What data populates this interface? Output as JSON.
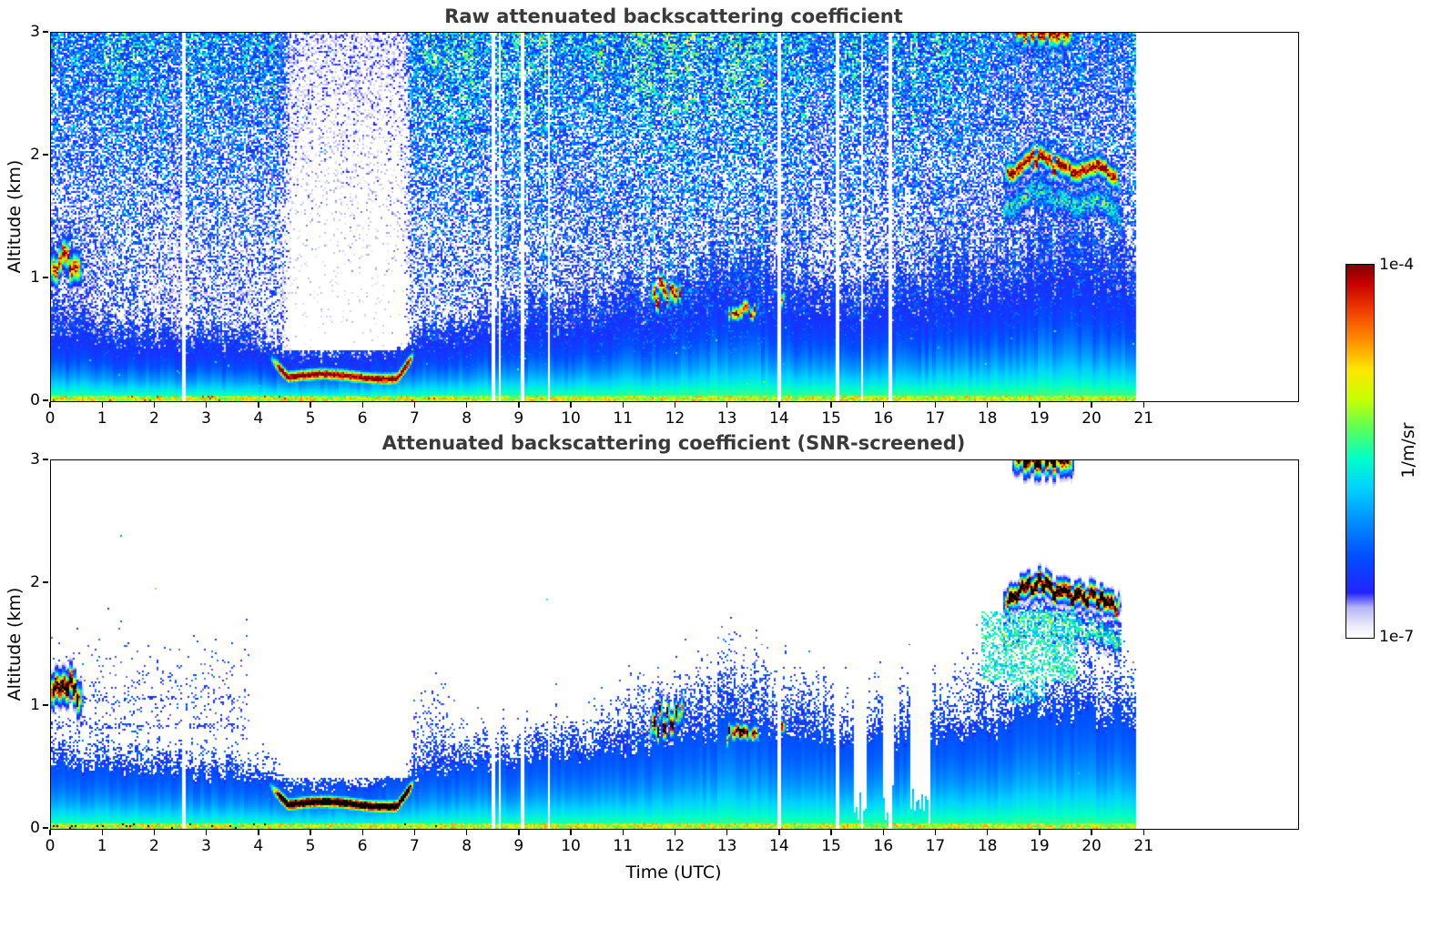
{
  "figure": {
    "xlabel": "Time (UTC)",
    "ylabel": "Altitude (km)",
    "colorbar": {
      "label_top": "1e-4",
      "label_bottom": "1e-7",
      "unit": "1/m/sr"
    }
  },
  "chart_data": [
    {
      "type": "heatmap",
      "title": "Raw attenuated backscattering coefficient",
      "xlabel": "Time (UTC)",
      "ylabel": "Altitude (km)",
      "x_range": [
        0,
        23.95
      ],
      "x_ticks": [
        0,
        1,
        2,
        3,
        4,
        5,
        6,
        7,
        8,
        9,
        10,
        11,
        12,
        13,
        14,
        15,
        16,
        17,
        18,
        19,
        20,
        21
      ],
      "y_range": [
        0,
        3
      ],
      "y_ticks": [
        0,
        1,
        2,
        3
      ],
      "value_unit": "1/m/sr",
      "value_scale": "log10",
      "vmin": 1e-07,
      "vmax": 0.0001,
      "grid": false,
      "screened": false,
      "data_time_range": [
        0,
        20.83
      ],
      "colormap_stops": [
        [
          0.0,
          "#ffffff"
        ],
        [
          0.03,
          "#ececfb"
        ],
        [
          0.08,
          "#b4b4f5"
        ],
        [
          0.12,
          "#2323ff"
        ],
        [
          0.22,
          "#0050ff"
        ],
        [
          0.32,
          "#0096ff"
        ],
        [
          0.4,
          "#00d2ff"
        ],
        [
          0.48,
          "#00ffc8"
        ],
        [
          0.56,
          "#5aff5a"
        ],
        [
          0.64,
          "#c8ff00"
        ],
        [
          0.72,
          "#ffe600"
        ],
        [
          0.8,
          "#ff8c00"
        ],
        [
          0.88,
          "#f03c00"
        ],
        [
          0.95,
          "#c80000"
        ],
        [
          1.0,
          "#820000"
        ]
      ],
      "boundary_layer_top_km": [
        [
          0,
          0.5
        ],
        [
          1,
          0.46
        ],
        [
          2,
          0.44
        ],
        [
          3,
          0.42
        ],
        [
          4,
          0.38
        ],
        [
          4.6,
          0.32
        ],
        [
          6,
          0.33
        ],
        [
          7,
          0.42
        ],
        [
          8,
          0.5
        ],
        [
          9,
          0.52
        ],
        [
          10,
          0.56
        ],
        [
          11,
          0.62
        ],
        [
          12,
          0.68
        ],
        [
          13,
          0.82
        ],
        [
          13.6,
          0.78
        ],
        [
          14,
          0.72
        ],
        [
          15,
          0.7
        ],
        [
          16,
          0.66
        ],
        [
          17,
          0.72
        ],
        [
          18,
          0.78
        ],
        [
          19,
          0.92
        ],
        [
          20,
          0.88
        ],
        [
          20.83,
          0.82
        ]
      ],
      "fog_layer": {
        "t_start": 4.35,
        "t_end": 6.95,
        "center_km": 0.2,
        "sigma_km": 0.045,
        "end_rise_km_per_h": 0.55
      },
      "clouds": [
        {
          "t0": -0.05,
          "t1": 0.62,
          "z_km": 1.12,
          "sigma_km": 0.1,
          "peak": 0.95,
          "jitter_km": 0.09
        },
        {
          "t0": 11.48,
          "t1": 12.18,
          "z_km": 0.88,
          "sigma_km": 0.08,
          "peak": 0.98,
          "jitter_km": 0.1,
          "plume": true
        },
        {
          "t0": 12.92,
          "t1": 13.62,
          "z_km": 0.76,
          "sigma_km": 0.055,
          "peak": 0.92,
          "jitter_km": 0.06,
          "plume": true
        },
        {
          "t0": 13.93,
          "t1": 14.14,
          "z_km": 0.86,
          "sigma_km": 0.05,
          "peak": 0.88,
          "jitter_km": 0.05,
          "plume": true
        },
        {
          "t0": 18.28,
          "t1": 20.55,
          "sigma_km": 0.07,
          "peak": 1.02,
          "jitter_km": 0.05,
          "sub_layer": true,
          "z_profile": [
            [
              18.28,
              1.8
            ],
            [
              18.6,
              1.92
            ],
            [
              19.0,
              2.0
            ],
            [
              19.25,
              1.92
            ],
            [
              19.6,
              1.88
            ],
            [
              20.0,
              1.9
            ],
            [
              20.3,
              1.86
            ],
            [
              20.55,
              1.78
            ]
          ]
        },
        {
          "t0": 18.45,
          "t1": 19.65,
          "z_km": 3.02,
          "sigma_km": 0.1,
          "peak": 1.0,
          "jitter_km": 0.04
        }
      ],
      "missing_profiles_utc": [
        2.56,
        8.5,
        8.62,
        9.05,
        9.57,
        13.99,
        15.1,
        15.58,
        16.12
      ],
      "noise": {
        "amp_base": 0.2,
        "amp_alt_gain": 0.34,
        "bright_band_utc": [
          7.3,
          14.6
        ],
        "attenuation_above_fog": 0.34
      }
    },
    {
      "type": "heatmap",
      "title": "Attenuated backscattering coefficient (SNR-screened)",
      "xlabel": "Time (UTC)",
      "ylabel": "Altitude (km)",
      "x_range": [
        0,
        23.95
      ],
      "x_ticks": [
        0,
        1,
        2,
        3,
        4,
        5,
        6,
        7,
        8,
        9,
        10,
        11,
        12,
        13,
        14,
        15,
        16,
        17,
        18,
        19,
        20,
        21
      ],
      "y_range": [
        0,
        3
      ],
      "y_ticks": [
        0,
        1,
        2,
        3
      ],
      "value_unit": "1/m/sr",
      "value_scale": "log10",
      "vmin": 1e-07,
      "vmax": 0.0001,
      "grid": false,
      "screened": true,
      "data_time_range": [
        0,
        20.83
      ],
      "colormap_stops": [
        [
          0.0,
          "#ffffff"
        ],
        [
          0.03,
          "#ececfb"
        ],
        [
          0.08,
          "#b4b4f5"
        ],
        [
          0.12,
          "#2323ff"
        ],
        [
          0.22,
          "#0050ff"
        ],
        [
          0.32,
          "#0096ff"
        ],
        [
          0.4,
          "#00d2ff"
        ],
        [
          0.48,
          "#00ffc8"
        ],
        [
          0.56,
          "#5aff5a"
        ],
        [
          0.64,
          "#c8ff00"
        ],
        [
          0.72,
          "#ffe600"
        ],
        [
          0.8,
          "#ff8c00"
        ],
        [
          0.88,
          "#f03c00"
        ],
        [
          0.95,
          "#c80000"
        ],
        [
          1.0,
          "#820000"
        ]
      ],
      "boundary_layer_top_km": [
        [
          0,
          0.5
        ],
        [
          1,
          0.46
        ],
        [
          2,
          0.44
        ],
        [
          3,
          0.42
        ],
        [
          4,
          0.38
        ],
        [
          4.6,
          0.32
        ],
        [
          6,
          0.33
        ],
        [
          7,
          0.42
        ],
        [
          8,
          0.5
        ],
        [
          9,
          0.52
        ],
        [
          10,
          0.56
        ],
        [
          11,
          0.62
        ],
        [
          12,
          0.68
        ],
        [
          13,
          0.82
        ],
        [
          13.6,
          0.78
        ],
        [
          14,
          0.72
        ],
        [
          15,
          0.7
        ],
        [
          16,
          0.66
        ],
        [
          17,
          0.72
        ],
        [
          18,
          0.78
        ],
        [
          19,
          0.92
        ],
        [
          20,
          0.88
        ],
        [
          20.83,
          0.82
        ]
      ],
      "fog_layer": {
        "t_start": 4.35,
        "t_end": 6.95,
        "center_km": 0.2,
        "sigma_km": 0.045,
        "end_rise_km_per_h": 0.55
      },
      "clouds": [
        {
          "t0": -0.05,
          "t1": 0.62,
          "z_km": 1.12,
          "sigma_km": 0.1,
          "peak": 0.95,
          "jitter_km": 0.09
        },
        {
          "t0": 11.48,
          "t1": 12.18,
          "z_km": 0.88,
          "sigma_km": 0.08,
          "peak": 0.98,
          "jitter_km": 0.1,
          "plume": true
        },
        {
          "t0": 12.92,
          "t1": 13.62,
          "z_km": 0.76,
          "sigma_km": 0.055,
          "peak": 0.92,
          "jitter_km": 0.06,
          "plume": true
        },
        {
          "t0": 13.93,
          "t1": 14.14,
          "z_km": 0.86,
          "sigma_km": 0.05,
          "peak": 0.88,
          "jitter_km": 0.05,
          "plume": true
        },
        {
          "t0": 18.28,
          "t1": 20.55,
          "sigma_km": 0.07,
          "peak": 1.02,
          "jitter_km": 0.05,
          "sub_layer": true,
          "z_profile": [
            [
              18.28,
              1.8
            ],
            [
              18.6,
              1.92
            ],
            [
              19.0,
              2.0
            ],
            [
              19.25,
              1.92
            ],
            [
              19.6,
              1.88
            ],
            [
              20.0,
              1.9
            ],
            [
              20.3,
              1.86
            ],
            [
              20.55,
              1.78
            ]
          ]
        },
        {
          "t0": 18.45,
          "t1": 19.65,
          "z_km": 3.02,
          "sigma_km": 0.1,
          "peak": 1.0,
          "jitter_km": 0.04
        }
      ],
      "missing_profiles_utc": [
        2.56,
        8.5,
        8.62,
        9.05,
        9.57,
        13.99,
        15.1,
        15.58,
        16.12
      ],
      "bl_dropouts_utc": [
        [
          15.42,
          15.68
        ],
        [
          15.98,
          16.2
        ],
        [
          16.5,
          16.88
        ]
      ],
      "artifact_rows_km": [
        1.05,
        0.84
      ]
    }
  ]
}
